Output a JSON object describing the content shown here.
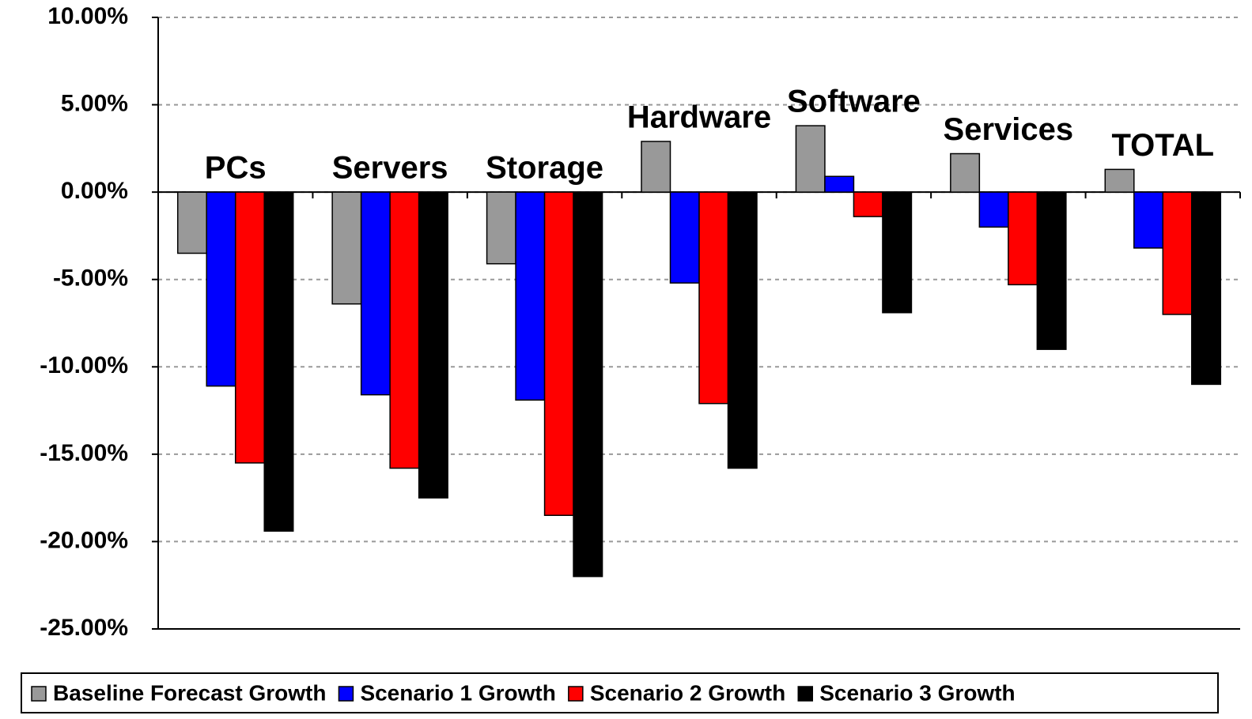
{
  "chart_data": {
    "type": "bar",
    "categories": [
      "PCs",
      "Servers",
      "Storage",
      "Hardware",
      "Software",
      "Services",
      "TOTAL"
    ],
    "series": [
      {
        "name": "Baseline Forecast Growth",
        "color": "#999999",
        "values": [
          -3.5,
          -6.4,
          -4.1,
          2.9,
          3.8,
          2.2,
          1.3
        ]
      },
      {
        "name": "Scenario 1 Growth",
        "color": "#0000ff",
        "values": [
          -11.1,
          -11.6,
          -11.9,
          -5.2,
          0.9,
          -2.0,
          -3.2
        ]
      },
      {
        "name": "Scenario 2 Growth",
        "color": "#ff0000",
        "values": [
          -15.5,
          -15.8,
          -18.5,
          -12.1,
          -1.4,
          -5.3,
          -7.0
        ]
      },
      {
        "name": "Scenario 3 Growth",
        "color": "#000000",
        "values": [
          -19.4,
          -17.5,
          -22.0,
          -15.8,
          -6.9,
          -9.0,
          -11.0
        ]
      }
    ],
    "ylim": [
      -25,
      10
    ],
    "yticks": [
      {
        "value": -25,
        "label": "-25.00%"
      },
      {
        "value": -20,
        "label": "-20.00%"
      },
      {
        "value": -15,
        "label": "-15.00%"
      },
      {
        "value": -10,
        "label": "-10.00%"
      },
      {
        "value": -5,
        "label": "-5.00%"
      },
      {
        "value": 0,
        "label": "0.00%"
      },
      {
        "value": 5,
        "label": "5.00%"
      },
      {
        "value": 10,
        "label": "10.00%"
      }
    ],
    "grid": true,
    "legend": "bottom"
  }
}
